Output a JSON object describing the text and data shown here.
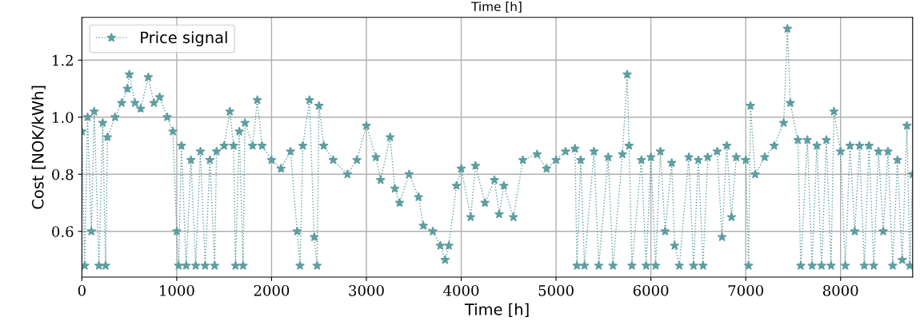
{
  "chart_data": {
    "type": "line",
    "title": "Time [h]",
    "xlabel": "Time [h]",
    "ylabel": "Cost [NOK/kWh]",
    "xlim": [
      0,
      8760
    ],
    "xticks": [
      0,
      1000,
      2000,
      3000,
      4000,
      5000,
      6000,
      7000,
      8000
    ],
    "ylim": [
      0.44,
      1.35
    ],
    "yticks": [
      {
        "value": 0.6,
        "label": "0.6"
      },
      {
        "value": 0.8,
        "label": "0.8"
      },
      {
        "value": 1.0,
        "label": "1.0"
      },
      {
        "value": 1.2,
        "label": "1.2"
      }
    ],
    "grid": true,
    "legend": "top left",
    "marker": "star",
    "line_style": "dotted",
    "series": [
      {
        "name": "Price signal",
        "color": "#5f9ea0",
        "x": [
          0,
          30,
          60,
          100,
          130,
          180,
          220,
          250,
          270,
          350,
          420,
          480,
          500,
          560,
          620,
          700,
          760,
          820,
          900,
          960,
          1000,
          1020,
          1050,
          1100,
          1150,
          1200,
          1250,
          1300,
          1350,
          1400,
          1420,
          1500,
          1560,
          1600,
          1620,
          1660,
          1700,
          1720,
          1800,
          1850,
          1900,
          2000,
          2100,
          2200,
          2270,
          2300,
          2330,
          2400,
          2450,
          2480,
          2500,
          2550,
          2650,
          2800,
          2900,
          3000,
          3100,
          3150,
          3250,
          3300,
          3350,
          3450,
          3550,
          3600,
          3700,
          3780,
          3830,
          3870,
          3950,
          4000,
          4100,
          4150,
          4250,
          4350,
          4400,
          4450,
          4550,
          4650,
          4800,
          4900,
          5000,
          5100,
          5200,
          5220,
          5260,
          5300,
          5400,
          5450,
          5550,
          5600,
          5700,
          5750,
          5770,
          5800,
          5900,
          5950,
          6000,
          6050,
          6100,
          6150,
          6220,
          6250,
          6300,
          6400,
          6450,
          6500,
          6550,
          6600,
          6700,
          6750,
          6800,
          6850,
          6900,
          7000,
          7030,
          7050,
          7100,
          7200,
          7300,
          7400,
          7440,
          7470,
          7550,
          7580,
          7650,
          7700,
          7750,
          7800,
          7850,
          7900,
          7930,
          8000,
          8050,
          8100,
          8150,
          8200,
          8250,
          8300,
          8350,
          8400,
          8450,
          8500,
          8550,
          8600,
          8650,
          8700,
          8730,
          8760
        ],
        "values": [
          0.95,
          0.48,
          1.0,
          0.6,
          1.02,
          0.48,
          0.98,
          0.48,
          0.93,
          1.0,
          1.05,
          1.1,
          1.15,
          1.05,
          1.03,
          1.14,
          1.05,
          1.07,
          1.0,
          0.95,
          0.6,
          0.48,
          0.9,
          0.48,
          0.85,
          0.48,
          0.88,
          0.48,
          0.85,
          0.48,
          0.88,
          0.9,
          1.02,
          0.9,
          0.48,
          0.95,
          0.48,
          0.98,
          0.9,
          1.06,
          0.9,
          0.85,
          0.82,
          0.88,
          0.6,
          0.48,
          0.9,
          1.06,
          0.58,
          0.48,
          1.04,
          0.9,
          0.85,
          0.8,
          0.85,
          0.97,
          0.86,
          0.78,
          0.93,
          0.75,
          0.7,
          0.8,
          0.72,
          0.62,
          0.6,
          0.55,
          0.5,
          0.55,
          0.76,
          0.82,
          0.65,
          0.83,
          0.7,
          0.78,
          0.66,
          0.76,
          0.65,
          0.85,
          0.87,
          0.82,
          0.85,
          0.88,
          0.89,
          0.48,
          0.85,
          0.48,
          0.88,
          0.48,
          0.86,
          0.48,
          0.87,
          1.15,
          0.9,
          0.48,
          0.85,
          0.48,
          0.86,
          0.48,
          0.88,
          0.6,
          0.84,
          0.55,
          0.48,
          0.86,
          0.48,
          0.85,
          0.48,
          0.86,
          0.88,
          0.58,
          0.9,
          0.65,
          0.86,
          0.85,
          0.48,
          1.04,
          0.8,
          0.86,
          0.9,
          0.98,
          1.31,
          1.05,
          0.92,
          0.48,
          0.92,
          0.48,
          0.9,
          0.48,
          0.92,
          0.48,
          1.02,
          0.88,
          0.48,
          0.9,
          0.6,
          0.9,
          0.48,
          0.9,
          0.48,
          0.88,
          0.6,
          0.88,
          0.48,
          0.85,
          0.5,
          0.97,
          0.48,
          0.8
        ]
      }
    ]
  }
}
